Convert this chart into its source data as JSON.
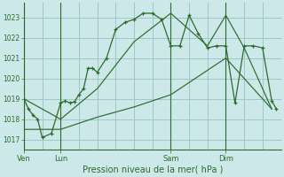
{
  "bg_color": "#cce8e8",
  "grid_color": "#9ec8c8",
  "line_color": "#2d6b2d",
  "title": "Pression niveau de la mer( hPa )",
  "ylabel_ticks": [
    1017,
    1018,
    1019,
    1020,
    1021,
    1022,
    1023
  ],
  "ylim": [
    1016.5,
    1023.7
  ],
  "day_labels": [
    "Ven",
    "Lun",
    "Sam",
    "Dim"
  ],
  "day_positions": [
    0,
    4,
    16,
    22
  ],
  "xlim": [
    0,
    28
  ],
  "series1_x": [
    0,
    0.5,
    1,
    1.5,
    2,
    3,
    4,
    4.5,
    5,
    5.5,
    6,
    6.5,
    7,
    7.5,
    8,
    9,
    10,
    11,
    12,
    13,
    14,
    15,
    16,
    17,
    18,
    19,
    20,
    21,
    22,
    23,
    24,
    25,
    26,
    27,
    27.5
  ],
  "series1_y": [
    1019.0,
    1018.5,
    1018.2,
    1018.0,
    1017.1,
    1017.3,
    1018.8,
    1018.9,
    1018.8,
    1018.85,
    1019.2,
    1019.5,
    1020.5,
    1020.5,
    1020.3,
    1021.0,
    1022.4,
    1022.75,
    1022.9,
    1023.2,
    1023.2,
    1022.9,
    1021.6,
    1021.6,
    1023.1,
    1022.2,
    1021.5,
    1021.6,
    1021.6,
    1018.8,
    1021.6,
    1021.6,
    1021.5,
    1018.9,
    1018.5
  ],
  "series2_x": [
    0,
    4,
    8,
    12,
    16,
    20,
    22,
    24,
    27
  ],
  "series2_y": [
    1019.0,
    1018.0,
    1019.5,
    1021.8,
    1023.2,
    1021.6,
    1023.1,
    1021.5,
    1018.5
  ],
  "series3_x": [
    0,
    4,
    8,
    12,
    16,
    22,
    27
  ],
  "series3_y": [
    1017.5,
    1017.5,
    1018.1,
    1018.6,
    1019.2,
    1021.0,
    1018.5
  ],
  "figsize": [
    3.2,
    2.0
  ],
  "dpi": 100
}
